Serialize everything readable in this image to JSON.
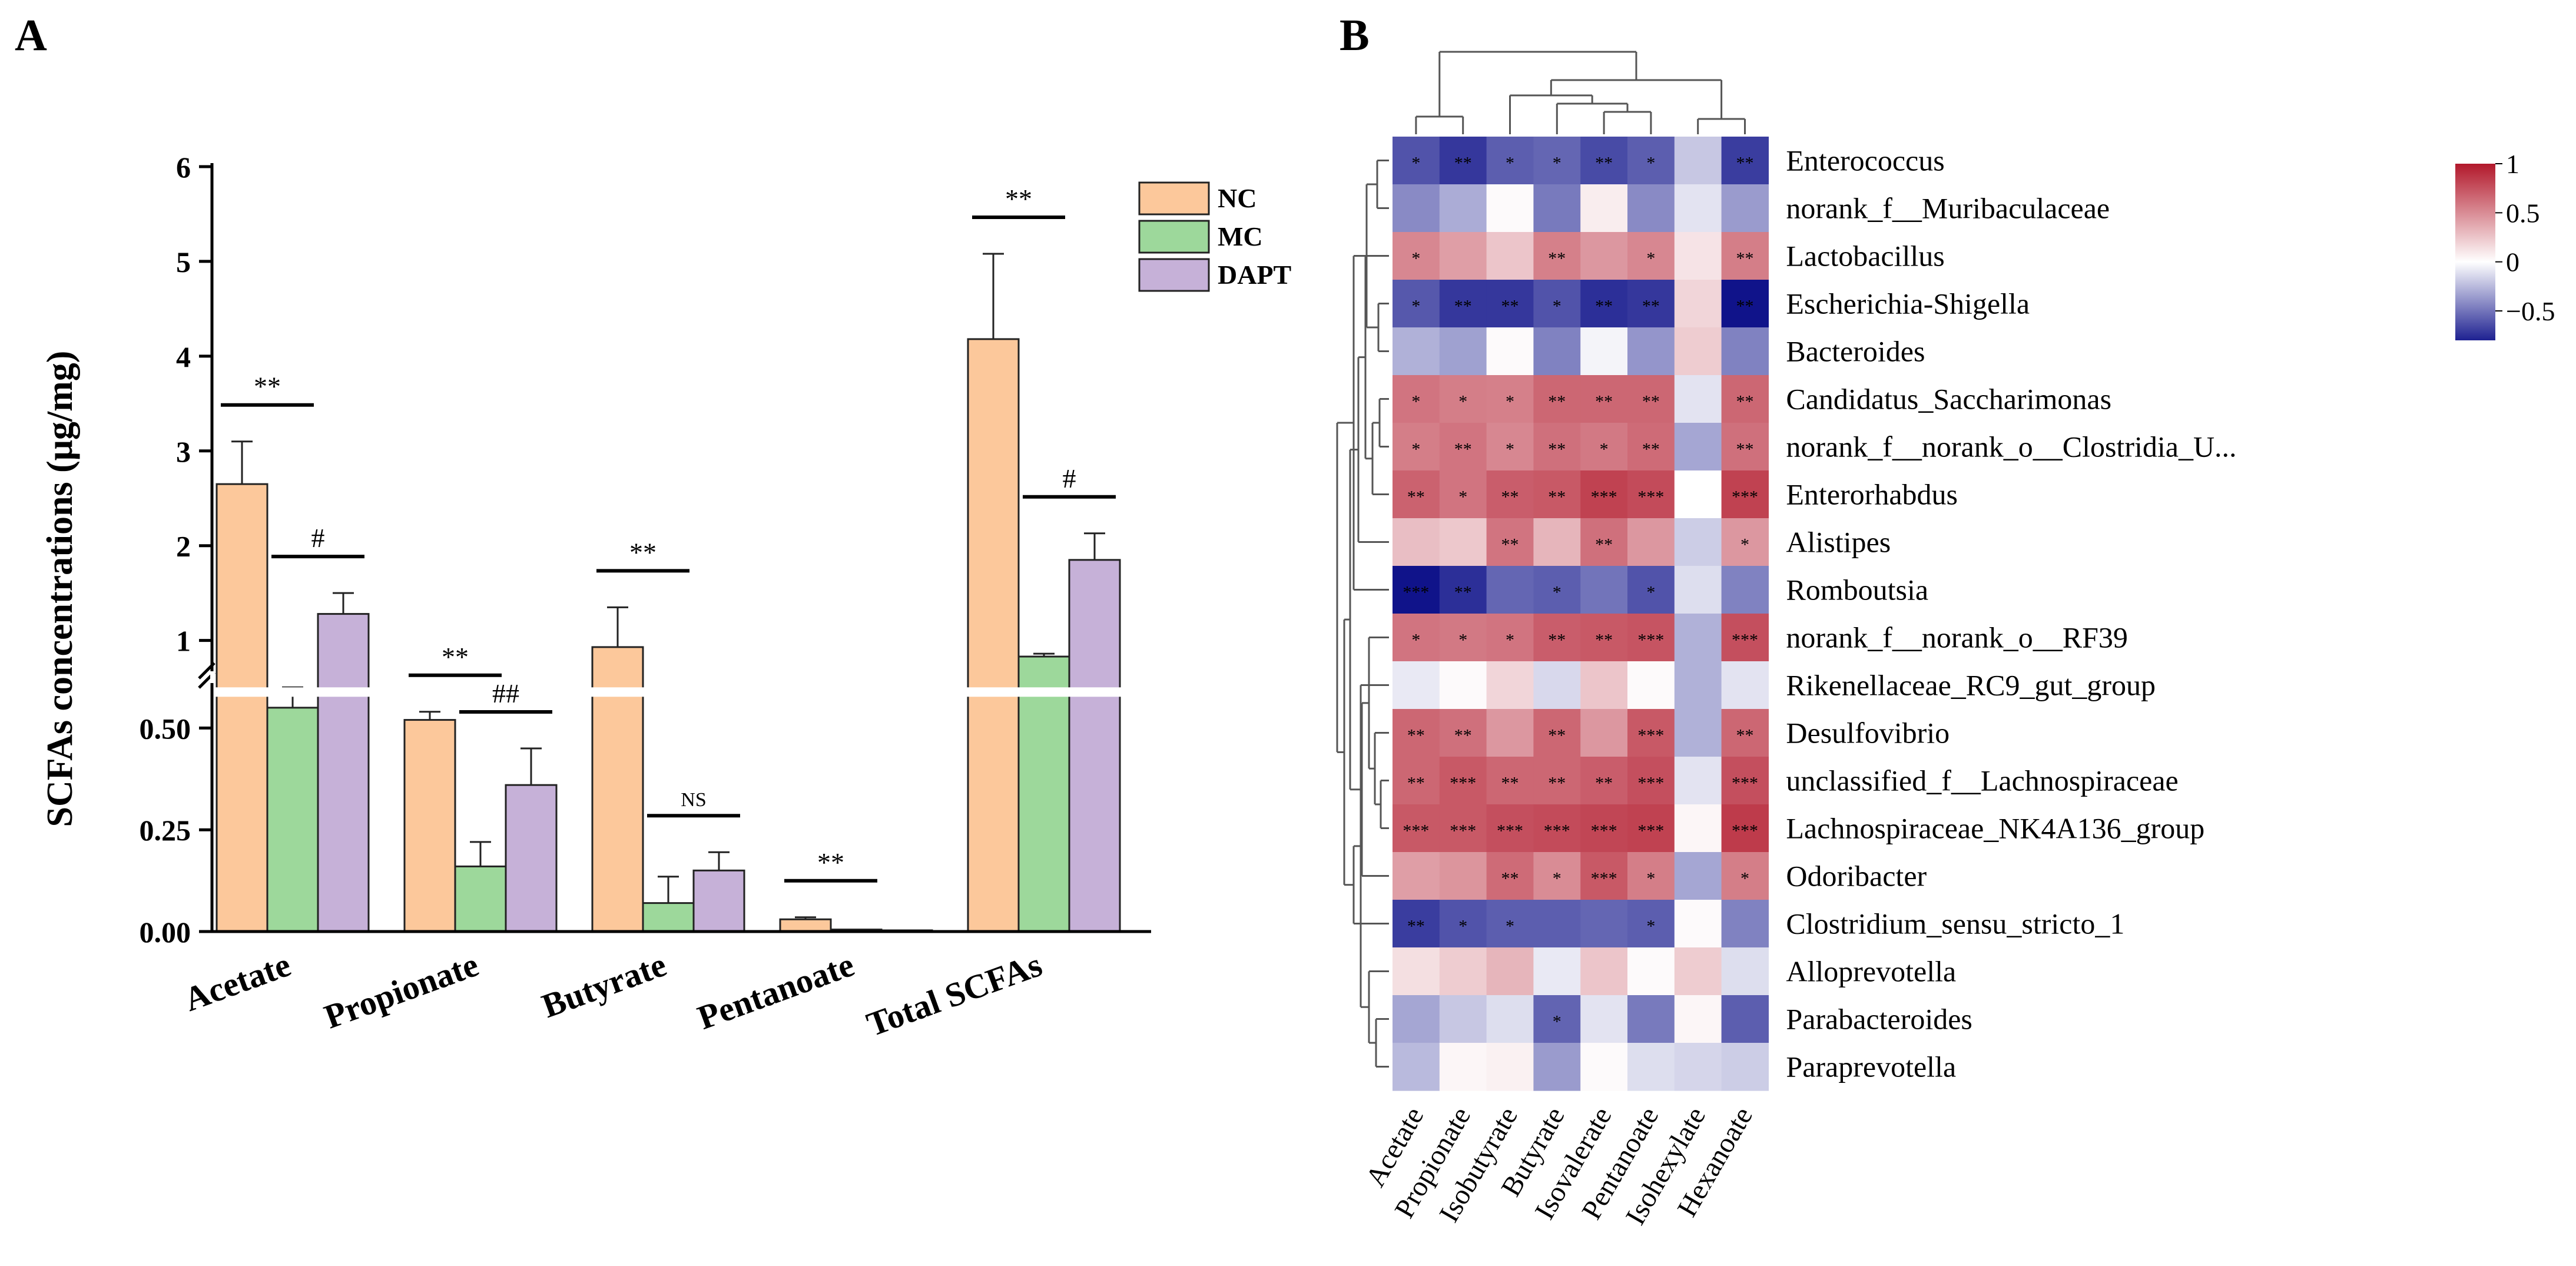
{
  "panel_labels": {
    "a": "A",
    "b": "B"
  },
  "chart_data": [
    {
      "type": "bar",
      "panel": "A",
      "ylabel": "SCFAs concentrations (μg/mg)",
      "axis_break": {
        "lower": [
          0,
          0.625
        ],
        "upper": [
          0.625,
          6
        ]
      },
      "lower_ticks": [
        "0.00",
        "0.25",
        "0.50"
      ],
      "upper_ticks": [
        "1",
        "2",
        "3",
        "4",
        "5",
        "6"
      ],
      "categories": [
        "Acetate",
        "Propionate",
        "Butyrate",
        "Pentanoate",
        "Total SCFAs"
      ],
      "series": [
        {
          "name": "NC",
          "color": "#fcc89b",
          "values": [
            2.65,
            0.52,
            0.93,
            0.03,
            4.18
          ],
          "errors": [
            0.45,
            0.02,
            0.42,
            0.005,
            0.9
          ]
        },
        {
          "name": "MC",
          "color": "#9dd89b",
          "values": [
            0.55,
            0.16,
            0.07,
            0.005,
            0.83
          ],
          "errors": [
            0.05,
            0.06,
            0.065,
            0.002,
            0.03
          ]
        },
        {
          "name": "DAPT",
          "color": "#c6b1d8",
          "values": [
            1.28,
            0.36,
            0.15,
            0.003,
            1.85
          ],
          "errors": [
            0.22,
            0.09,
            0.045,
            0.001,
            0.28
          ]
        }
      ],
      "annotations": [
        {
          "category": 0,
          "pair": "NC-MC",
          "label": "**"
        },
        {
          "category": 0,
          "pair": "MC-DAPT",
          "label": "#"
        },
        {
          "category": 1,
          "pair": "NC-MC",
          "label": "**"
        },
        {
          "category": 1,
          "pair": "MC-DAPT",
          "label": "##"
        },
        {
          "category": 2,
          "pair": "NC-MC",
          "label": "**"
        },
        {
          "category": 2,
          "pair": "MC-DAPT",
          "label": "NS"
        },
        {
          "category": 3,
          "pair": "NC-MC",
          "label": "**"
        },
        {
          "category": 4,
          "pair": "NC-MC",
          "label": "**"
        },
        {
          "category": 4,
          "pair": "MC-DAPT",
          "label": "#"
        }
      ]
    },
    {
      "type": "heatmap",
      "panel": "B",
      "columns": [
        "Acetate",
        "Propionate",
        "Isobutyrate",
        "Butyrate",
        "Isovalerate",
        "Pentanoate",
        "Isohexylate",
        "Hexanoate"
      ],
      "rows": [
        "Enterococcus",
        "norank_f__Muribaculaceae",
        "Lactobacillus",
        "Escherichia-Shigella",
        "Bacteroides",
        "Candidatus_Saccharimonas",
        "norank_f__norank_o__Clostridia_U...",
        "Enterorhabdus",
        "Alistipes",
        "Romboutsia",
        "norank_f__norank_o__RF39",
        "Rikenellaceae_RC9_gut_group",
        "Desulfovibrio",
        "unclassified_f__Lachnospiraceae",
        "Lachnospiraceae_NK4A136_group",
        "Odoribacter",
        "Clostridium_sensu_stricto_1",
        "Alloprevotella",
        "Parabacteroides",
        "Paraprevotella"
      ],
      "values": [
        [
          -0.62,
          -0.72,
          -0.58,
          -0.55,
          -0.65,
          -0.58,
          -0.2,
          -0.7
        ],
        [
          -0.42,
          -0.3,
          0.02,
          -0.48,
          0.08,
          -0.42,
          -0.1,
          -0.36
        ],
        [
          0.52,
          0.42,
          0.25,
          0.55,
          0.45,
          0.52,
          0.12,
          0.56
        ],
        [
          -0.6,
          -0.72,
          -0.72,
          -0.62,
          -0.75,
          -0.72,
          0.18,
          -0.85
        ],
        [
          -0.28,
          -0.34,
          0.02,
          -0.45,
          -0.04,
          -0.38,
          0.22,
          -0.45
        ],
        [
          0.6,
          0.56,
          0.55,
          0.66,
          0.66,
          0.66,
          -0.1,
          0.66
        ],
        [
          0.56,
          0.6,
          0.52,
          0.62,
          0.58,
          0.64,
          -0.32,
          0.62
        ],
        [
          0.68,
          0.6,
          0.7,
          0.72,
          0.82,
          0.78,
          0.0,
          0.82
        ],
        [
          0.28,
          0.24,
          0.6,
          0.32,
          0.62,
          0.45,
          -0.18,
          0.45
        ],
        [
          -0.92,
          -0.75,
          -0.55,
          -0.58,
          -0.5,
          -0.62,
          -0.12,
          -0.45
        ],
        [
          0.6,
          0.58,
          0.6,
          0.7,
          0.72,
          0.74,
          -0.28,
          0.76
        ],
        [
          -0.08,
          0.02,
          0.18,
          -0.14,
          0.25,
          0.02,
          -0.28,
          -0.1
        ],
        [
          0.66,
          0.62,
          0.45,
          0.66,
          0.45,
          0.72,
          -0.28,
          0.66
        ],
        [
          0.66,
          0.72,
          0.66,
          0.66,
          0.7,
          0.76,
          -0.1,
          0.76
        ],
        [
          0.72,
          0.72,
          0.76,
          0.78,
          0.8,
          0.82,
          0.04,
          0.85
        ],
        [
          0.42,
          0.46,
          0.64,
          0.5,
          0.72,
          0.56,
          -0.32,
          0.56
        ],
        [
          -0.7,
          -0.62,
          -0.58,
          -0.58,
          -0.55,
          -0.58,
          0.02,
          -0.45
        ],
        [
          0.14,
          0.22,
          0.32,
          -0.08,
          0.25,
          0.02,
          0.22,
          -0.12
        ],
        [
          -0.32,
          -0.2,
          -0.12,
          -0.56,
          -0.1,
          -0.48,
          0.04,
          -0.58
        ],
        [
          -0.25,
          0.04,
          0.06,
          -0.36,
          0.02,
          -0.12,
          -0.15,
          -0.18
        ]
      ],
      "stars": [
        [
          "*",
          "**",
          "*",
          "*",
          "**",
          "*",
          "",
          "**"
        ],
        [
          "",
          "",
          "",
          "",
          "",
          "",
          "",
          ""
        ],
        [
          "*",
          "",
          "",
          "**",
          "",
          "*",
          "",
          "**"
        ],
        [
          "*",
          "**",
          "**",
          "*",
          "**",
          "**",
          "",
          "**"
        ],
        [
          "",
          "",
          "",
          "",
          "",
          "",
          "",
          ""
        ],
        [
          "*",
          "*",
          "*",
          "**",
          "**",
          "**",
          "",
          "**"
        ],
        [
          "*",
          "**",
          "*",
          "**",
          "*",
          "**",
          "",
          "**"
        ],
        [
          "**",
          "*",
          "**",
          "**",
          "***",
          "***",
          "",
          "***"
        ],
        [
          "",
          "",
          "**",
          "",
          "**",
          "",
          "",
          "*"
        ],
        [
          "***",
          "**",
          "",
          "*",
          "",
          "*",
          "",
          ""
        ],
        [
          "*",
          "*",
          "*",
          "**",
          "**",
          "***",
          "",
          "***"
        ],
        [
          "",
          "",
          "",
          "",
          "",
          "",
          "",
          ""
        ],
        [
          "**",
          "**",
          "",
          "**",
          "",
          "***",
          "",
          "**"
        ],
        [
          "**",
          "***",
          "**",
          "**",
          "**",
          "***",
          "",
          "***"
        ],
        [
          "***",
          "***",
          "***",
          "***",
          "***",
          "***",
          "",
          "***"
        ],
        [
          "",
          "",
          "**",
          "*",
          "***",
          "*",
          "",
          "*"
        ],
        [
          "**",
          "*",
          "*",
          "",
          "",
          "*",
          "",
          ""
        ],
        [
          "",
          "",
          "",
          "",
          "",
          "",
          "",
          ""
        ],
        [
          "",
          "",
          "",
          "*",
          "",
          "",
          "",
          ""
        ],
        [
          "",
          "",
          "",
          "",
          "",
          "",
          "",
          ""
        ]
      ],
      "colorbar": {
        "range": [
          -0.8,
          1
        ],
        "ticks": [
          "1",
          "0.5",
          "0",
          "−0.5"
        ],
        "tick_values": [
          1,
          0.5,
          0,
          -0.5
        ],
        "colors": {
          "low": "#10138a",
          "mid": "#ffffff",
          "high": "#b2182b"
        }
      }
    }
  ]
}
